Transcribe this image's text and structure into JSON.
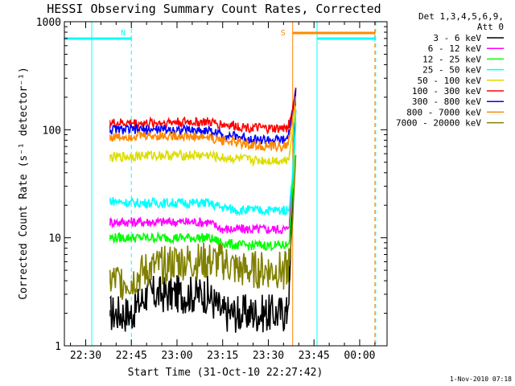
{
  "chart_data": {
    "type": "line",
    "title": "HESSI Observing Summary Count Rates, Corrected",
    "xlabel": "Start Time (31-Oct-10 22:27:42)",
    "ylabel": "Corrected Count Rate (s⁻¹ detector⁻¹)",
    "y_scale": "log",
    "ylim": [
      1,
      1000
    ],
    "xlim": [
      "22:23",
      "00:09"
    ],
    "x_ticks": [
      "22:30",
      "22:45",
      "23:00",
      "23:15",
      "23:30",
      "23:45",
      "00:00"
    ],
    "y_ticks": [
      "1",
      "10",
      "100",
      "1000"
    ],
    "grid": false,
    "legend_position": "right",
    "legend_header": [
      "Det 1,3,4,5,6,9,",
      "Att 0"
    ],
    "x": [
      "22:38",
      "22:45",
      "22:50",
      "23:00",
      "23:10",
      "23:15",
      "23:20",
      "23:25",
      "23:30",
      "23:35",
      "23:36",
      "23:37",
      "23:38",
      "23:39"
    ],
    "series": [
      {
        "name": "3 - 6 keV",
        "color": "#000000",
        "values": [
          2,
          2,
          3,
          3,
          3,
          2,
          2,
          2,
          2,
          2,
          2,
          4,
          30,
          250
        ]
      },
      {
        "name": "6 - 12 keV",
        "color": "#ff00ff",
        "values": [
          14,
          14,
          14,
          14,
          14,
          12,
          12,
          12,
          12,
          12,
          12,
          14,
          35,
          150
        ]
      },
      {
        "name": "12 - 25 keV",
        "color": "#00ff00",
        "values": [
          10,
          10,
          10,
          10,
          10,
          9,
          8.5,
          8.5,
          8.5,
          8.5,
          8.5,
          10,
          30,
          120
        ]
      },
      {
        "name": "25 - 50 keV",
        "color": "#00ffff",
        "values": [
          22,
          21,
          21,
          21,
          21,
          19,
          18,
          18,
          18,
          18,
          18,
          20,
          40,
          150
        ]
      },
      {
        "name": "50 - 100 keV",
        "color": "#dddd00",
        "values": [
          55,
          57,
          58,
          58,
          58,
          55,
          54,
          52,
          52,
          52,
          53,
          60,
          100,
          170
        ]
      },
      {
        "name": "100 - 300 keV",
        "color": "#ff0000",
        "values": [
          115,
          115,
          115,
          118,
          118,
          112,
          108,
          104,
          102,
          102,
          104,
          115,
          160,
          240
        ]
      },
      {
        "name": "300 - 800 keV",
        "color": "#0000ff",
        "values": [
          100,
          100,
          100,
          100,
          98,
          90,
          86,
          82,
          80,
          80,
          82,
          95,
          140,
          240
        ]
      },
      {
        "name": "800 - 7000 keV",
        "color": "#ff8800",
        "values": [
          85,
          88,
          88,
          88,
          85,
          80,
          76,
          72,
          70,
          70,
          72,
          85,
          130,
          200
        ]
      },
      {
        "name": "7000 - 20000 keV",
        "color": "#808000",
        "values": [
          4,
          4,
          5,
          6,
          6,
          6,
          5,
          5,
          5,
          5,
          5,
          6,
          15,
          60
        ]
      }
    ],
    "flag_bars": [
      {
        "label": "N",
        "color": "#00ffff",
        "segments": [
          [
            "22:23",
            "22:45"
          ],
          [
            "23:46",
            "00:05"
          ]
        ]
      },
      {
        "label": "S",
        "color": "#ff8800",
        "segments": [
          [
            "23:38",
            "00:05"
          ]
        ]
      }
    ],
    "solid_markers": [
      {
        "time": "22:32",
        "color": "#00ffff"
      },
      {
        "time": "23:38",
        "color": "#ff8800"
      },
      {
        "time": "23:46",
        "color": "#00ffff"
      }
    ],
    "dashed_markers": [
      {
        "time": "22:45",
        "color": "#00ffff"
      },
      {
        "time": "00:05",
        "color": "#ff8800"
      },
      {
        "time": "00:05",
        "color": "#00ffff"
      }
    ]
  },
  "footer_date": "1-Nov-2010 07:18"
}
